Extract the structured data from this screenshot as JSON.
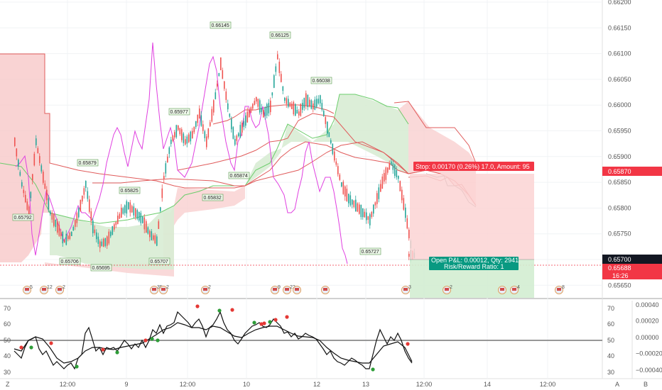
{
  "price_axis": {
    "ticks": [
      "0.66200",
      "0.66150",
      "0.66100",
      "0.66050",
      "0.66000",
      "0.65950",
      "0.65900",
      "0.65850",
      "0.65800",
      "0.65750",
      "0.65700",
      "0.65650"
    ],
    "stop_price": "0.65870",
    "current_price": "0.65700",
    "last_price": "0.65688",
    "countdown": "16:26"
  },
  "time_axis": {
    "ticks": [
      "12:00",
      "9",
      "12:00",
      "10",
      "12",
      "13",
      "12:00",
      "14",
      "12:00"
    ]
  },
  "corner_labels": {
    "left": "Z",
    "right_a": "A",
    "right_b": "B"
  },
  "oscillator_axis": {
    "left_ticks": [
      "70",
      "60",
      "50",
      "40",
      "30"
    ],
    "right_ticks": [
      "70",
      "60",
      "50",
      "40",
      "30"
    ],
    "value_ticks": [
      "0.00040",
      "0.00020",
      "0.00000",
      "−0.00020",
      "−0.00040"
    ]
  },
  "position_tool": {
    "stop_text": "Stop: 0.00170 (0.26%) 17.0, Amount: 95",
    "pnl_line1": "Open P&L: 0.00012, Qty: 2941",
    "pnl_line2": "Risk/Reward Ratio: 1"
  },
  "price_tags": [
    "0.66145",
    "0.66125",
    "0.66038",
    "0.65977",
    "0.65879",
    "0.65874",
    "0.65825",
    "0.65832",
    "0.65792",
    "0.65727",
    "0.65706",
    "0.65695",
    "0.65707"
  ],
  "event_markers": [
    "5",
    "12",
    "2",
    "35",
    "2",
    "2",
    "9",
    "22",
    "3",
    "2",
    "4",
    "8"
  ],
  "colors": {
    "candle_up": "#26a69a",
    "candle_down": "#ef5350",
    "magenta": "#e040e0",
    "cloud_red": "#f7c6c6",
    "cloud_green": "#d6ecd3",
    "stop_red": "#f23645",
    "profit_green": "#089981"
  }
}
